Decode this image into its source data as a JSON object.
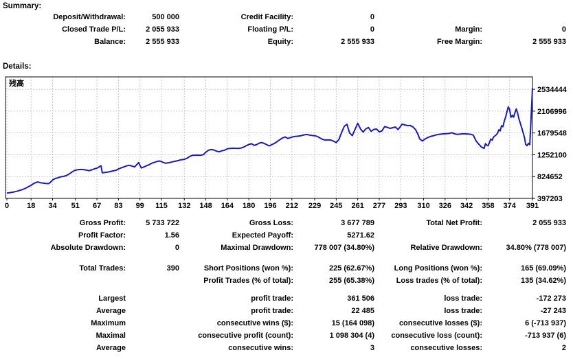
{
  "summary": {
    "title": "Summary:",
    "rows": [
      [
        "Deposit/Withdrawal:",
        "500 000",
        "Credit Facility:",
        "0",
        "",
        ""
      ],
      [
        "Closed Trade P/L:",
        "2 055 933",
        "Floating P/L:",
        "0",
        "Margin:",
        "0"
      ],
      [
        "Balance:",
        "2 555 933",
        "Equity:",
        "2 555 933",
        "Free Margin:",
        "2 555 933"
      ]
    ]
  },
  "details": {
    "title": "Details:",
    "rows": [
      [
        "Gross Profit:",
        "5 733 722",
        "Gross Loss:",
        "3 677 789",
        "Total Net Profit:",
        "2 055 933"
      ],
      [
        "Profit Factor:",
        "1.56",
        "Expected Payoff:",
        "5271.62",
        "",
        ""
      ],
      [
        "Absolute Drawdown:",
        "0",
        "Maximal Drawdown:",
        "778 007 (34.80%)",
        "Relative Drawdown:",
        "34.80% (778 007)"
      ],
      [
        "Total Trades:",
        "390",
        "Short Positions (won %):",
        "225 (62.67%)",
        "Long Positions (won %):",
        "165 (69.09%)"
      ],
      [
        "",
        "",
        "Profit Trades (% of total):",
        "255 (65.38%)",
        "Loss trades (% of total):",
        "135 (34.62%)"
      ],
      [
        "Largest",
        "",
        "profit trade:",
        "361 506",
        "loss trade:",
        "-172 273"
      ],
      [
        "Average",
        "",
        "profit trade:",
        "22 485",
        "loss trade:",
        "-27 243"
      ],
      [
        "Maximum",
        "",
        "consecutive wins ($):",
        "15 (164 098)",
        "consecutive losses ($):",
        "6 (-713 937)"
      ],
      [
        "Maximal",
        "",
        "consecutive profit (count):",
        "1 098 304 (4)",
        "consecutive loss (count):",
        "-713 937 (6)"
      ],
      [
        "Average",
        "",
        "consecutive wins:",
        "3",
        "consecutive losses:",
        "2"
      ]
    ]
  },
  "chart_data": {
    "type": "line",
    "title": "残高",
    "xlabel": "",
    "ylabel": "",
    "x_range": [
      0,
      391
    ],
    "y_range": [
      397203,
      2534444
    ],
    "x_ticks": [
      0,
      18,
      34,
      51,
      67,
      83,
      99,
      115,
      132,
      148,
      164,
      180,
      196,
      212,
      229,
      245,
      261,
      277,
      293,
      310,
      326,
      342,
      358,
      374,
      391
    ],
    "y_ticks": [
      2534444,
      2106996,
      1679548,
      1252100,
      824652,
      397203
    ],
    "grid": "dashed",
    "line_color": "#1a1ab4",
    "grid_color": "#c9c9c9",
    "series": [
      {
        "name": "残高 (Balance)",
        "points": [
          [
            0,
            500000
          ],
          [
            2,
            509000
          ],
          [
            4,
            517000
          ],
          [
            6,
            528000
          ],
          [
            8,
            541000
          ],
          [
            10,
            557000
          ],
          [
            12,
            573000
          ],
          [
            14,
            597000
          ],
          [
            16,
            626000
          ],
          [
            18,
            653000
          ],
          [
            20,
            689000
          ],
          [
            22,
            712000
          ],
          [
            23,
            718000
          ],
          [
            25,
            704000
          ],
          [
            27,
            697000
          ],
          [
            29,
            689000
          ],
          [
            31,
            686000
          ],
          [
            32,
            703000
          ],
          [
            34,
            758000
          ],
          [
            36,
            787000
          ],
          [
            38,
            801000
          ],
          [
            40,
            819000
          ],
          [
            42,
            827000
          ],
          [
            44,
            841000
          ],
          [
            46,
            869000
          ],
          [
            48,
            906000
          ],
          [
            50,
            939000
          ],
          [
            52,
            956000
          ],
          [
            54,
            962000
          ],
          [
            56,
            963000
          ],
          [
            58,
            957000
          ],
          [
            60,
            946000
          ],
          [
            61,
            940000
          ],
          [
            63,
            954000
          ],
          [
            65,
            976000
          ],
          [
            67,
            989000
          ],
          [
            69,
            1021000
          ],
          [
            70,
            1036000
          ],
          [
            71,
            898000
          ],
          [
            73,
            906000
          ],
          [
            75,
            913000
          ],
          [
            77,
            923000
          ],
          [
            79,
            936000
          ],
          [
            81,
            946000
          ],
          [
            83,
            973000
          ],
          [
            85,
            996000
          ],
          [
            87,
            1013000
          ],
          [
            89,
            1033000
          ],
          [
            91,
            1046000
          ],
          [
            93,
            1031000
          ],
          [
            95,
            1013000
          ],
          [
            97,
            1069000
          ],
          [
            98,
            1099000
          ],
          [
            100,
            993000
          ],
          [
            102,
            1013000
          ],
          [
            104,
            1037000
          ],
          [
            106,
            1059000
          ],
          [
            108,
            1089000
          ],
          [
            110,
            1103000
          ],
          [
            112,
            1123000
          ],
          [
            114,
            1129000
          ],
          [
            116,
            1105000
          ],
          [
            118,
            1087000
          ],
          [
            120,
            1093000
          ],
          [
            122,
            1105000
          ],
          [
            124,
            1119000
          ],
          [
            126,
            1129000
          ],
          [
            128,
            1143000
          ],
          [
            130,
            1156000
          ],
          [
            132,
            1163000
          ],
          [
            134,
            1183000
          ],
          [
            136,
            1219000
          ],
          [
            138,
            1241000
          ],
          [
            141,
            1245000
          ],
          [
            144,
            1243000
          ],
          [
            146,
            1251000
          ],
          [
            148,
            1303000
          ],
          [
            150,
            1341000
          ],
          [
            152,
            1353000
          ],
          [
            154,
            1345000
          ],
          [
            156,
            1323000
          ],
          [
            158,
            1311000
          ],
          [
            160,
            1329000
          ],
          [
            162,
            1341000
          ],
          [
            164,
            1369000
          ],
          [
            166,
            1377000
          ],
          [
            168,
            1381000
          ],
          [
            170,
            1379000
          ],
          [
            172,
            1377000
          ],
          [
            174,
            1383000
          ],
          [
            176,
            1399000
          ],
          [
            178,
            1429000
          ],
          [
            180,
            1453000
          ],
          [
            182,
            1469000
          ],
          [
            184,
            1436000
          ],
          [
            186,
            1453000
          ],
          [
            188,
            1483000
          ],
          [
            190,
            1489000
          ],
          [
            192,
            1466000
          ],
          [
            194,
            1439000
          ],
          [
            195,
            1426000
          ],
          [
            197,
            1449000
          ],
          [
            199,
            1473000
          ],
          [
            201,
            1509000
          ],
          [
            203,
            1546000
          ],
          [
            205,
            1581000
          ],
          [
            207,
            1601000
          ],
          [
            209,
            1573000
          ],
          [
            211,
            1589000
          ],
          [
            213,
            1605000
          ],
          [
            215,
            1613000
          ],
          [
            217,
            1619000
          ],
          [
            219,
            1627000
          ],
          [
            221,
            1641000
          ],
          [
            223,
            1649000
          ],
          [
            225,
            1639000
          ],
          [
            227,
            1629000
          ],
          [
            229,
            1625000
          ],
          [
            231,
            1611000
          ],
          [
            233,
            1579000
          ],
          [
            235,
            1553000
          ],
          [
            237,
            1541000
          ],
          [
            239,
            1543000
          ],
          [
            241,
            1541000
          ],
          [
            243,
            1519000
          ],
          [
            245,
            1489000
          ],
          [
            247,
            1553000
          ],
          [
            249,
            1689000
          ],
          [
            251,
            1809000
          ],
          [
            253,
            1851000
          ],
          [
            254,
            1759000
          ],
          [
            255,
            1679000
          ],
          [
            257,
            1626000
          ],
          [
            259,
            1749000
          ],
          [
            261,
            1869000
          ],
          [
            263,
            1761000
          ],
          [
            265,
            1696000
          ],
          [
            267,
            1759000
          ],
          [
            269,
            1786000
          ],
          [
            271,
            1711000
          ],
          [
            273,
            1749000
          ],
          [
            275,
            1756000
          ],
          [
            277,
            1701000
          ],
          [
            279,
            1719000
          ],
          [
            281,
            1803000
          ],
          [
            283,
            1789000
          ],
          [
            285,
            1769000
          ],
          [
            287,
            1781000
          ],
          [
            289,
            1796000
          ],
          [
            291,
            1746000
          ],
          [
            293,
            1813000
          ],
          [
            294,
            1853000
          ],
          [
            296,
            1836000
          ],
          [
            298,
            1823000
          ],
          [
            300,
            1826000
          ],
          [
            302,
            1799000
          ],
          [
            304,
            1746000
          ],
          [
            306,
            1641000
          ],
          [
            307,
            1566000
          ],
          [
            309,
            1521000
          ],
          [
            311,
            1559000
          ],
          [
            313,
            1589000
          ],
          [
            315,
            1609000
          ],
          [
            317,
            1623000
          ],
          [
            319,
            1639000
          ],
          [
            321,
            1649000
          ],
          [
            323,
            1656000
          ],
          [
            325,
            1661000
          ],
          [
            327,
            1664000
          ],
          [
            329,
            1669000
          ],
          [
            331,
            1685000
          ],
          [
            333,
            1663000
          ],
          [
            335,
            1651000
          ],
          [
            337,
            1656000
          ],
          [
            339,
            1661000
          ],
          [
            341,
            1661000
          ],
          [
            343,
            1659000
          ],
          [
            345,
            1653000
          ],
          [
            347,
            1636000
          ],
          [
            349,
            1526000
          ],
          [
            351,
            1463000
          ],
          [
            353,
            1403000
          ],
          [
            355,
            1376000
          ],
          [
            356,
            1469000
          ],
          [
            357,
            1441000
          ],
          [
            358,
            1429000
          ],
          [
            359,
            1489000
          ],
          [
            360,
            1561000
          ],
          [
            361,
            1536000
          ],
          [
            362,
            1599000
          ],
          [
            364,
            1641000
          ],
          [
            365,
            1673000
          ],
          [
            366,
            1741000
          ],
          [
            367,
            1721000
          ],
          [
            368,
            1821000
          ],
          [
            369,
            1801000
          ],
          [
            370,
            1906000
          ],
          [
            371,
            1991000
          ],
          [
            372,
            2091000
          ],
          [
            373,
            2191000
          ],
          [
            374,
            2141000
          ],
          [
            375,
            1986000
          ],
          [
            376,
            2026000
          ],
          [
            377,
            1989000
          ],
          [
            378,
            2081000
          ],
          [
            379,
            2151000
          ],
          [
            380,
            2061000
          ],
          [
            381,
            1951000
          ],
          [
            382,
            1866000
          ],
          [
            383,
            1781000
          ],
          [
            384,
            1691000
          ],
          [
            385,
            1593000
          ],
          [
            386,
            1453000
          ],
          [
            387,
            1429000
          ],
          [
            388,
            1476000
          ],
          [
            389,
            1449000
          ],
          [
            390,
            1981000
          ],
          [
            391,
            2555933
          ]
        ]
      }
    ]
  }
}
